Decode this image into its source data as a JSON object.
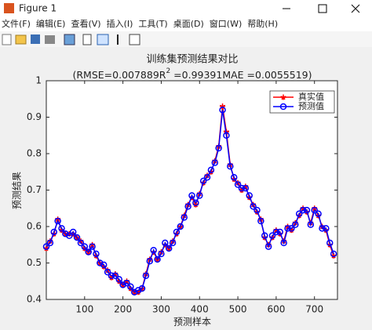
{
  "window": {
    "title": "Figure 1",
    "menu": [
      "文件(F)",
      "编辑(E)",
      "查看(V)",
      "插入(I)",
      "工具(T)",
      "桌面(D)",
      "窗口(W)",
      "帮助(H)"
    ]
  },
  "chart_data": {
    "type": "line",
    "title": "训练集预测结果对比",
    "subtitle": [
      "(RMSE=0.007889R",
      "2",
      " =0.99391MAE =0.0055519)"
    ],
    "x_label": "预测样本",
    "y_label": "预测结果",
    "x": [
      0,
      10,
      20,
      30,
      40,
      50,
      60,
      70,
      80,
      90,
      100,
      110,
      120,
      130,
      140,
      150,
      160,
      170,
      180,
      190,
      200,
      210,
      220,
      230,
      240,
      250,
      260,
      270,
      280,
      290,
      300,
      310,
      320,
      330,
      340,
      350,
      360,
      370,
      380,
      390,
      400,
      410,
      420,
      430,
      440,
      450,
      460,
      470,
      480,
      490,
      500,
      510,
      520,
      530,
      540,
      550,
      560,
      570,
      580,
      590,
      600,
      610,
      620,
      630,
      640,
      650,
      660,
      670,
      680,
      690,
      700,
      710,
      720,
      730,
      740,
      750
    ],
    "series": [
      {
        "name": "真实值",
        "color": "#ff0000",
        "marker": "star",
        "values": [
          0.54,
          0.56,
          0.58,
          0.62,
          0.59,
          0.58,
          0.58,
          0.58,
          0.57,
          0.56,
          0.54,
          0.53,
          0.55,
          0.52,
          0.5,
          0.49,
          0.48,
          0.46,
          0.47,
          0.45,
          0.44,
          0.45,
          0.43,
          0.42,
          0.42,
          0.43,
          0.47,
          0.51,
          0.53,
          0.51,
          0.53,
          0.55,
          0.54,
          0.56,
          0.58,
          0.6,
          0.63,
          0.66,
          0.68,
          0.66,
          0.69,
          0.72,
          0.74,
          0.75,
          0.78,
          0.82,
          0.93,
          0.86,
          0.77,
          0.73,
          0.72,
          0.7,
          0.71,
          0.68,
          0.66,
          0.64,
          0.62,
          0.57,
          0.55,
          0.57,
          0.59,
          0.58,
          0.56,
          0.6,
          0.59,
          0.61,
          0.63,
          0.65,
          0.64,
          0.61,
          0.65,
          0.63,
          0.6,
          0.59,
          0.55,
          0.52
        ]
      },
      {
        "name": "预测值",
        "color": "#0000ff",
        "marker": "circle",
        "values": [
          0.545,
          0.555,
          0.585,
          0.615,
          0.595,
          0.58,
          0.575,
          0.585,
          0.57,
          0.555,
          0.545,
          0.53,
          0.545,
          0.525,
          0.5,
          0.495,
          0.475,
          0.465,
          0.465,
          0.455,
          0.44,
          0.445,
          0.435,
          0.42,
          0.425,
          0.43,
          0.465,
          0.505,
          0.535,
          0.51,
          0.525,
          0.555,
          0.54,
          0.555,
          0.585,
          0.6,
          0.625,
          0.655,
          0.685,
          0.665,
          0.685,
          0.725,
          0.735,
          0.755,
          0.775,
          0.815,
          0.92,
          0.85,
          0.765,
          0.735,
          0.715,
          0.705,
          0.705,
          0.685,
          0.655,
          0.645,
          0.615,
          0.575,
          0.545,
          0.575,
          0.585,
          0.585,
          0.555,
          0.595,
          0.595,
          0.605,
          0.635,
          0.645,
          0.645,
          0.605,
          0.645,
          0.635,
          0.595,
          0.595,
          0.555,
          0.525
        ]
      }
    ],
    "xlim": [
      0,
      760
    ],
    "ylim": [
      0.4,
      1
    ],
    "xticks": [
      100,
      200,
      300,
      400,
      500,
      600,
      700
    ],
    "yticks": [
      0.4,
      0.5,
      0.6,
      0.7,
      0.8,
      0.9,
      1
    ],
    "grid": false,
    "legend": "northeast"
  }
}
